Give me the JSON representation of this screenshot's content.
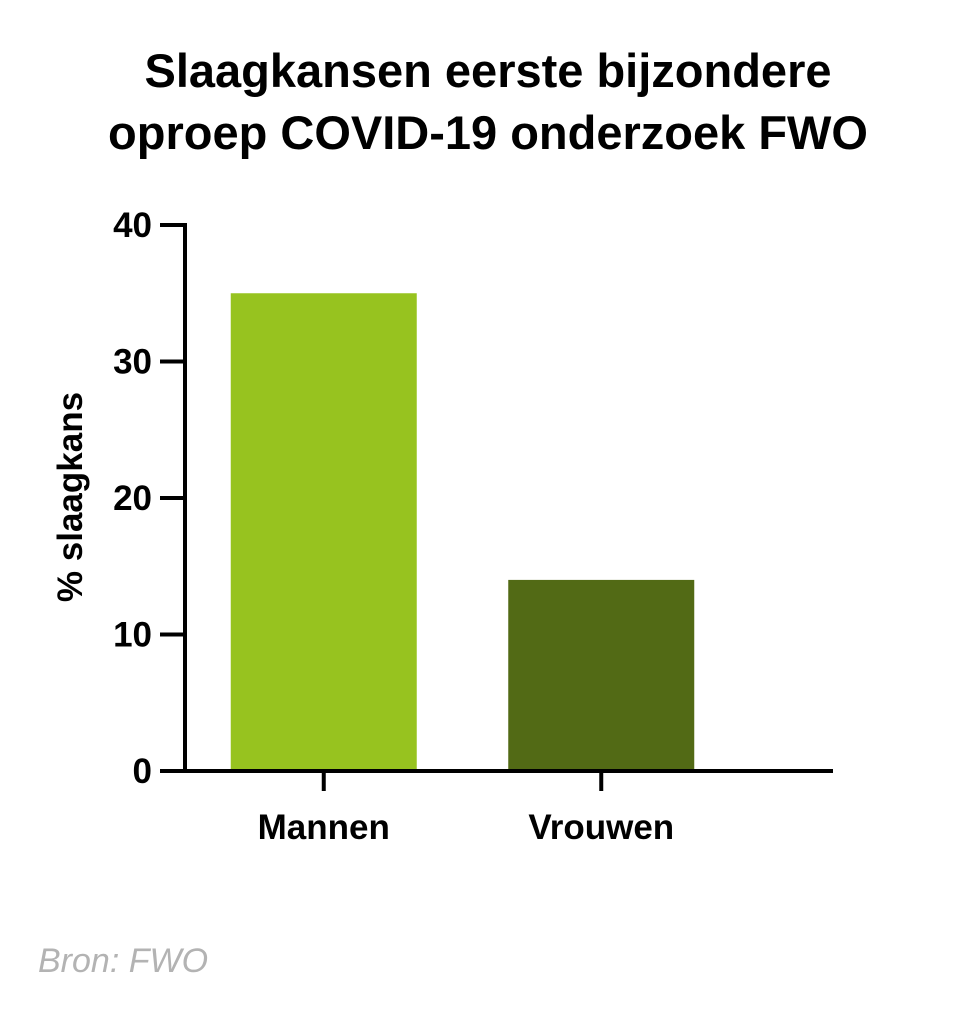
{
  "chart_data": {
    "type": "bar",
    "title_lines": [
      "Slaagkansen eerste bijzondere",
      "oproep COVID-19 onderzoek FWO"
    ],
    "categories": [
      "Mannen",
      "Vrouwen"
    ],
    "values": [
      35,
      14
    ],
    "colors": [
      "#97c31f",
      "#526a15"
    ],
    "ylabel": "% slaagkans",
    "xlabel": "",
    "ylim": [
      0,
      40
    ],
    "yticks": [
      "0",
      "10",
      "20",
      "30",
      "40"
    ],
    "grid": false
  },
  "source": "Bron: FWO"
}
